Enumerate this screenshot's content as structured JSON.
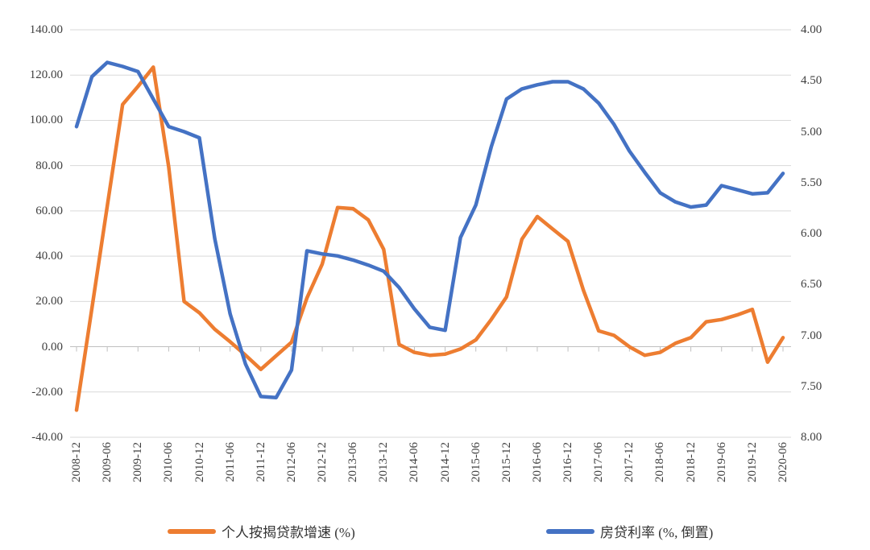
{
  "chart_data": {
    "type": "line",
    "title": "",
    "x_tick_labels": [
      "2008-12",
      "2009-06",
      "2009-12",
      "2010-06",
      "2010-12",
      "2011-06",
      "2011-12",
      "2012-06",
      "2012-12",
      "2013-06",
      "2013-12",
      "2014-06",
      "2014-12",
      "2015-06",
      "2015-12",
      "2016-06",
      "2016-12",
      "2017-06",
      "2017-12",
      "2018-06",
      "2018-12",
      "2019-06",
      "2019-12",
      "2020-06"
    ],
    "x_points_per_label_interval": 2,
    "left_axis": {
      "min": -40,
      "max": 140,
      "tick_labels": [
        "140.00",
        "120.00",
        "100.00",
        "80.00",
        "60.00",
        "40.00",
        "20.00",
        "0.00",
        "-20.00",
        "-40.00"
      ]
    },
    "right_axis": {
      "min": 4,
      "max": 8,
      "inverted": true,
      "tick_labels": [
        "4.00",
        "4.50",
        "5.00",
        "5.50",
        "6.00",
        "6.50",
        "7.00",
        "7.50",
        "8.00"
      ]
    },
    "grid": "horizontal",
    "legend_position": "bottom",
    "series": [
      {
        "name": "个人按揭贷款增速 (%)",
        "axis": "left",
        "color": "#ED7D31",
        "x_step_categories": 0.5,
        "values": [
          -28,
          17,
          62,
          107,
          115,
          123.5,
          79.5,
          20,
          15,
          7.7,
          2.2,
          -3.7,
          -10,
          -4,
          2,
          21.5,
          36.5,
          61.5,
          61,
          56,
          43,
          1,
          -2.5,
          -3.8,
          -3.3,
          -1,
          3,
          12,
          22,
          47.5,
          57.5,
          52,
          46.5,
          25,
          7,
          5,
          0,
          -3.8,
          -2.5,
          1.5,
          4,
          11,
          12,
          14,
          16.5,
          -6.8,
          4
        ]
      },
      {
        "name": "房贷利率 (%, 倒置)",
        "axis": "right",
        "color": "#4472C4",
        "x_step_categories": 0.5,
        "values": [
          4.95,
          4.46,
          4.32,
          4.36,
          4.41,
          4.68,
          4.95,
          5.0,
          5.06,
          6.05,
          6.79,
          7.28,
          7.6,
          7.61,
          7.34,
          6.17,
          6.2,
          6.22,
          6.26,
          6.31,
          6.37,
          6.53,
          6.74,
          6.92,
          6.95,
          6.04,
          5.72,
          5.15,
          4.68,
          4.58,
          4.54,
          4.51,
          4.51,
          4.58,
          4.72,
          4.93,
          5.19,
          5.4,
          5.6,
          5.69,
          5.74,
          5.72,
          5.53,
          5.57,
          5.61,
          5.6,
          5.41
        ]
      }
    ],
    "legend": [
      {
        "label": "个人按揭贷款增速 (%)",
        "color": "#ED7D31"
      },
      {
        "label": "房贷利率 (%, 倒置)",
        "color": "#4472C4"
      }
    ],
    "colors": {
      "gridline": "#D9D9D9",
      "category_axis": "#BFBFBF",
      "label_text": "#3f3f3f"
    }
  }
}
